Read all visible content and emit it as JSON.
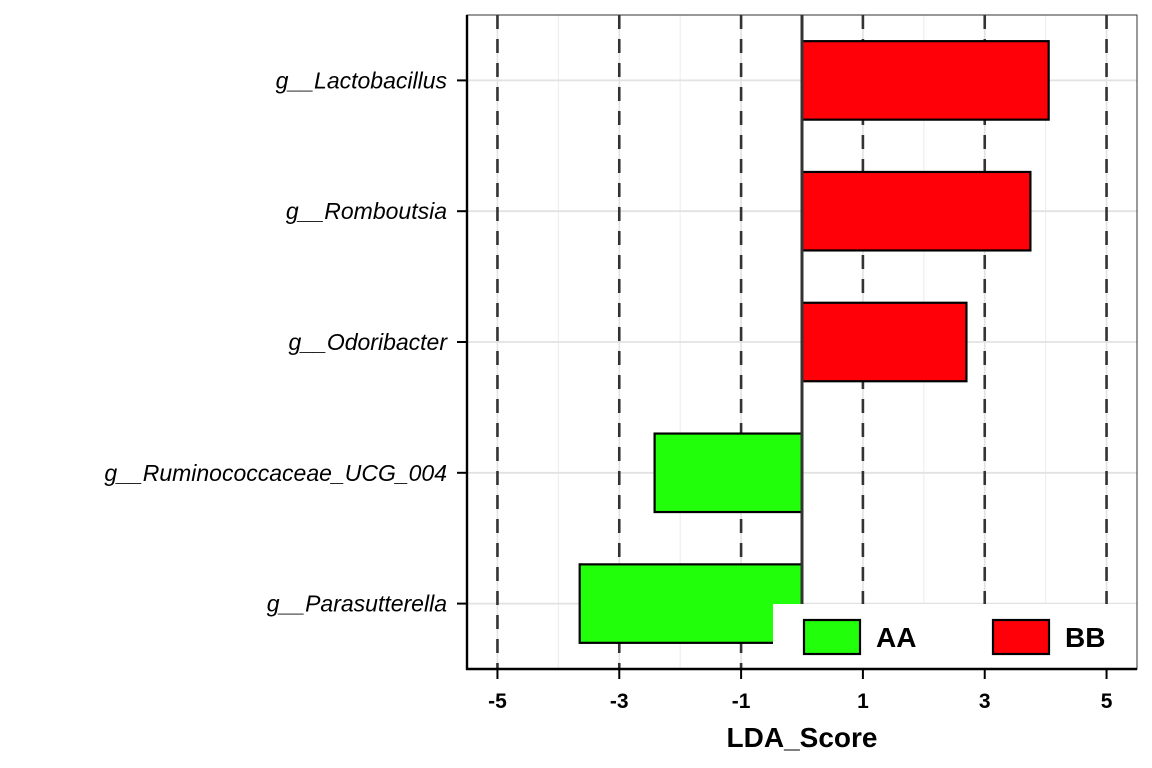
{
  "chart_data": {
    "type": "bar",
    "orientation": "horizontal",
    "categories": [
      "g__Lactobacillus",
      "g__Romboutsia",
      "g__Odoribacter",
      "g__Ruminococcaceae_UCG_004",
      "g__Parasutterella"
    ],
    "values": [
      4.05,
      3.75,
      2.7,
      -2.42,
      -3.65
    ],
    "groups": [
      "BB",
      "BB",
      "BB",
      "AA",
      "AA"
    ],
    "xlabel": "LDA_Score",
    "xlim": [
      -5.5,
      5.5
    ],
    "xticks": [
      -5,
      -3,
      -1,
      1,
      3,
      5
    ],
    "xtick_labels": [
      "-5",
      "-3",
      "-1",
      "1",
      "3",
      "5"
    ],
    "dashed_reference_lines": [
      -5,
      -3,
      -1,
      1,
      3,
      5
    ],
    "zero_line": 0,
    "grid": true,
    "legend": {
      "placement": "bottom-right",
      "entries": [
        {
          "label": "AA",
          "color": "#22ff0a"
        },
        {
          "label": "BB",
          "color": "#ff0008"
        }
      ]
    },
    "colors": {
      "AA": "#22ff0a",
      "BB": "#ff0008"
    }
  }
}
